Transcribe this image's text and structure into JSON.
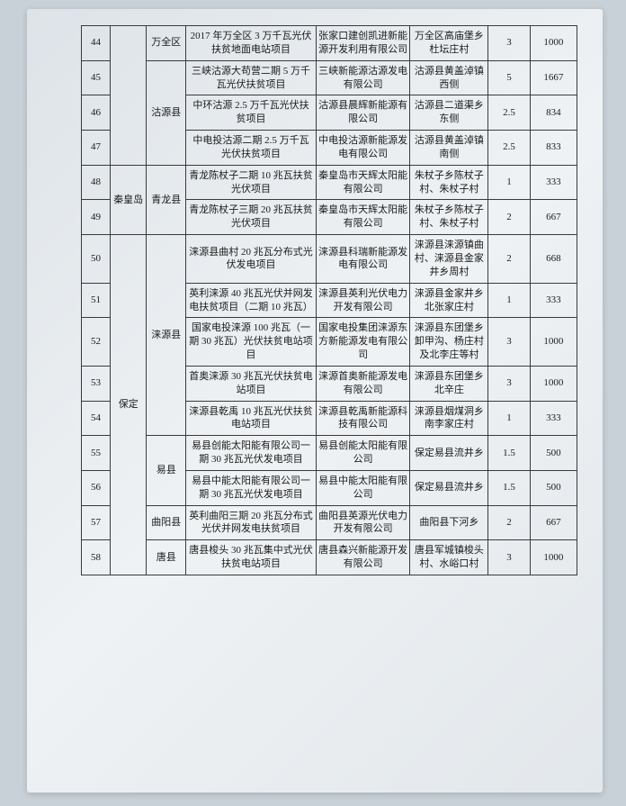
{
  "table": {
    "columns": [
      "idx",
      "city",
      "county",
      "project",
      "company",
      "location",
      "v1",
      "v2"
    ],
    "col_classes": [
      "col-idx",
      "col-city",
      "col-cnty",
      "col-proj",
      "col-comp",
      "col-loc",
      "col-n1",
      "col-n2"
    ],
    "border_color": "#3a3a3a",
    "font_size": 11,
    "background": "#e8ecef",
    "rows": [
      {
        "idx": "44",
        "city": "",
        "county": "万全区",
        "project": "2017 年万全区 3 万千瓦光伏扶贫地面电站项目",
        "company": "张家口建创凯进新能源开发利用有限公司",
        "location": "万全区高庙堡乡杜坛庄村",
        "v1": "3",
        "v2": "1000"
      },
      {
        "idx": "45",
        "city": "",
        "county": "",
        "project": "三峡沽源大苟营二期 5 万千瓦光伏扶贫项目",
        "company": "三峡新能源沽源发电有限公司",
        "location": "沽源县黄盖淖镇西侧",
        "v1": "5",
        "v2": "1667"
      },
      {
        "idx": "46",
        "city": "",
        "county": "沽源县",
        "project": "中环沽源 2.5 万千瓦光伏扶贫项目",
        "company": "沽源县晨辉新能源有限公司",
        "location": "沽源县二道渠乡东侧",
        "v1": "2.5",
        "v2": "834"
      },
      {
        "idx": "47",
        "city": "",
        "county": "",
        "project": "中电投沽源二期 2.5 万千瓦光伏扶贫项目",
        "company": "中电投沽源新能源发电有限公司",
        "location": "沽源县黄盖淖镇南侧",
        "v1": "2.5",
        "v2": "833"
      },
      {
        "idx": "48",
        "city": "秦皇岛",
        "county": "青龙县",
        "project": "青龙陈杖子二期 10 兆瓦扶贫光伏项目",
        "company": "秦皇岛市天辉太阳能有限公司",
        "location": "朱杖子乡陈杖子村、朱杖子村",
        "v1": "1",
        "v2": "333"
      },
      {
        "idx": "49",
        "city": "",
        "county": "",
        "project": "青龙陈杖子三期 20 兆瓦扶贫光伏项目",
        "company": "秦皇岛市天辉太阳能有限公司",
        "location": "朱杖子乡陈杖子村、朱杖子村",
        "v1": "2",
        "v2": "667"
      },
      {
        "idx": "50",
        "city": "",
        "county": "",
        "project": "涞源县曲村 20 兆瓦分布式光伏发电项目",
        "company": "涞源县科瑞新能源发电有限公司",
        "location": "涞源县涞源镇曲村、涞源县金家井乡周村",
        "v1": "2",
        "v2": "668"
      },
      {
        "idx": "51",
        "city": "",
        "county": "",
        "project": "英利涞源 40 兆瓦光伏并网发电扶贫项目（二期 10 兆瓦）",
        "company": "涞源县英利光伏电力开发有限公司",
        "location": "涞源县金家井乡北张家庄村",
        "v1": "1",
        "v2": "333"
      },
      {
        "idx": "52",
        "city": "",
        "county": "涞源县",
        "project": "国家电投涞源 100 兆瓦（一期 30 兆瓦）光伏扶贫电站项目",
        "company": "国家电投集团涞源东方新能源发电有限公司",
        "location": "涞源县东团堡乡卸甲沟、杨庄村及北李庄等村",
        "v1": "3",
        "v2": "1000"
      },
      {
        "idx": "53",
        "city": "",
        "county": "",
        "project": "首奥涞源 30 兆瓦光伏扶贫电站项目",
        "company": "涞源首奥新能源发电有限公司",
        "location": "涞源县东团堡乡北辛庄",
        "v1": "3",
        "v2": "1000"
      },
      {
        "idx": "54",
        "city": "保定",
        "county": "",
        "project": "涞源县乾禹 10 兆瓦光伏扶贫电站项目",
        "company": "涞源县乾禹新能源科技有限公司",
        "location": "涞源县烟煤洞乡南李家庄村",
        "v1": "1",
        "v2": "333"
      },
      {
        "idx": "55",
        "city": "",
        "county": "",
        "project": "易县创能太阳能有限公司一期 30 兆瓦光伏发电项目",
        "company": "易县创能太阳能有限公司",
        "location": "保定易县流井乡",
        "v1": "1.5",
        "v2": "500"
      },
      {
        "idx": "56",
        "city": "",
        "county": "易县",
        "project": "易县中能太阳能有限公司一期 30 兆瓦光伏发电项目",
        "company": "易县中能太阳能有限公司",
        "location": "保定易县流井乡",
        "v1": "1.5",
        "v2": "500"
      },
      {
        "idx": "57",
        "city": "",
        "county": "曲阳县",
        "project": "英利曲阳三期 20 兆瓦分布式光伏并网发电扶贫项目",
        "company": "曲阳县英源光伏电力开发有限公司",
        "location": "曲阳县下河乡",
        "v1": "2",
        "v2": "667"
      },
      {
        "idx": "58",
        "city": "",
        "county": "唐县",
        "project": "唐县梭头 30 兆瓦集中式光伏扶贫电站项目",
        "company": "唐县森兴新能源开发有限公司",
        "location": "唐县军城镇梭头村、水峪口村",
        "v1": "3",
        "v2": "1000"
      }
    ],
    "city_spans": [
      {
        "start": 0,
        "span": 4,
        "label": ""
      },
      {
        "start": 4,
        "span": 2,
        "label": "秦皇岛"
      },
      {
        "start": 6,
        "span": 9,
        "label": "保定"
      }
    ],
    "county_spans": [
      {
        "start": 0,
        "span": 1,
        "label": "万全区"
      },
      {
        "start": 1,
        "span": 3,
        "label": "沽源县"
      },
      {
        "start": 4,
        "span": 2,
        "label": "青龙县"
      },
      {
        "start": 6,
        "span": 5,
        "label": "涞源县"
      },
      {
        "start": 11,
        "span": 2,
        "label": "易县"
      },
      {
        "start": 13,
        "span": 1,
        "label": "曲阳县"
      },
      {
        "start": 14,
        "span": 1,
        "label": "唐县"
      }
    ]
  }
}
